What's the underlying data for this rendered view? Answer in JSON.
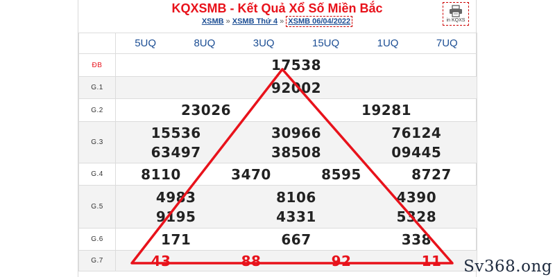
{
  "header": {
    "title": "KQXSMB - Kết Quả Xổ Số Miền Bắc",
    "breadcrumbs": [
      "XSMB",
      "XSMB Thứ 4",
      "XSMB 06/04/2022"
    ],
    "separator": "»",
    "print_label": "in KQXS"
  },
  "codes": [
    "5UQ",
    "8UQ",
    "3UQ",
    "15UQ",
    "1UQ",
    "7UQ"
  ],
  "prizes": {
    "db": {
      "label": "ĐB",
      "numbers": [
        "17538"
      ]
    },
    "g1": {
      "label": "G.1",
      "numbers": [
        "92002"
      ]
    },
    "g2": {
      "label": "G.2",
      "numbers": [
        "23026",
        "19281"
      ]
    },
    "g3": {
      "label": "G.3",
      "numbers": [
        "15536",
        "30966",
        "76124",
        "63497",
        "38508",
        "09445"
      ]
    },
    "g4": {
      "label": "G.4",
      "numbers": [
        "8110",
        "3470",
        "8595",
        "8727"
      ]
    },
    "g5": {
      "label": "G.5",
      "numbers": [
        "4983",
        "8106",
        "4390",
        "9195",
        "4331",
        "5328"
      ]
    },
    "g6": {
      "label": "G.6",
      "numbers": [
        "171",
        "667",
        "338"
      ]
    },
    "g7": {
      "label": "G.7",
      "numbers": [
        "43",
        "88",
        "92",
        "11"
      ]
    }
  },
  "colors": {
    "accent": "#e8121b",
    "link": "#1c4e94",
    "alt_row": "#f3f3f3"
  },
  "watermark": "Sv368.ong"
}
